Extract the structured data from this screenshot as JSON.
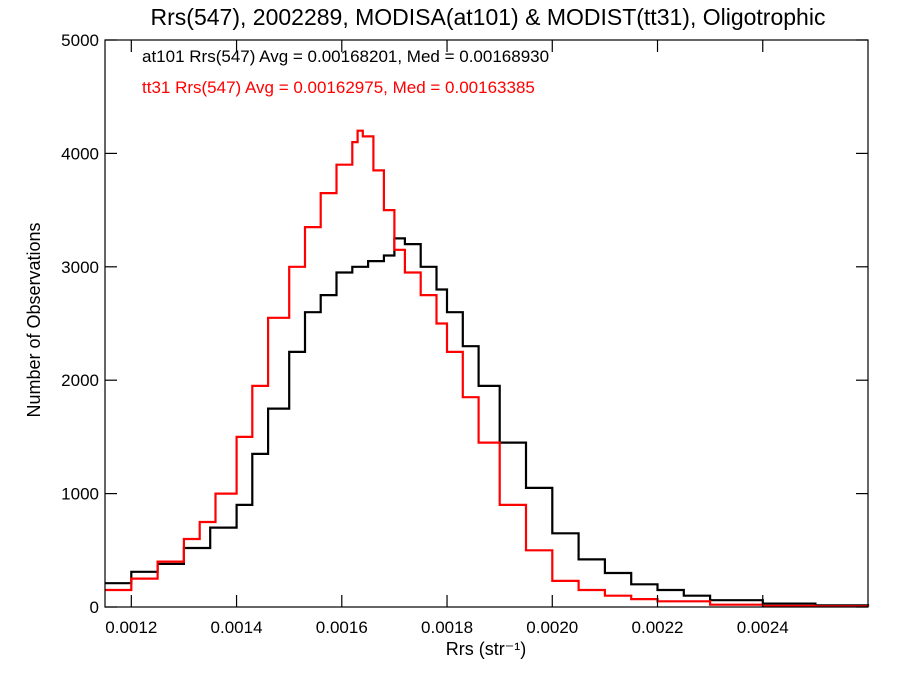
{
  "chart_data": {
    "type": "line",
    "title": "Rrs(547), 2002289, MODISA(at101) & MODIST(tt31), Oligotrophic",
    "xlabel": "Rrs (str⁻¹)",
    "ylabel": "Number of Observations",
    "xlim": [
      0.00115,
      0.0026
    ],
    "ylim": [
      0,
      5000
    ],
    "x_ticks": [
      0.0012,
      0.0014,
      0.0016,
      0.0018,
      0.002,
      0.0022,
      0.0024
    ],
    "x_tick_labels": [
      "0.0012",
      "0.0014",
      "0.0016",
      "0.0018",
      "0.0020",
      "0.0022",
      "0.0024"
    ],
    "y_ticks": [
      0,
      1000,
      2000,
      3000,
      4000,
      5000
    ],
    "y_tick_labels": [
      "0",
      "1000",
      "2000",
      "3000",
      "4000",
      "5000"
    ],
    "grid": false,
    "legend_position": "top-left",
    "annotations": [
      {
        "text": "at101 Rrs(547) Avg = 0.00168201, Med = 0.00168930",
        "color": "#000000"
      },
      {
        "text": "tt31 Rrs(547) Avg = 0.00162975, Med = 0.00163385",
        "color": "#ff0000"
      }
    ],
    "series": [
      {
        "color": "#000000",
        "x": [
          0.00115,
          0.0012,
          0.00125,
          0.0013,
          0.00135,
          0.0014,
          0.00143,
          0.00146,
          0.0015,
          0.00153,
          0.00156,
          0.00159,
          0.00162,
          0.00165,
          0.00168,
          0.0017,
          0.00172,
          0.00175,
          0.00178,
          0.0018,
          0.00183,
          0.00186,
          0.0019,
          0.00195,
          0.002,
          0.00205,
          0.0021,
          0.00215,
          0.0022,
          0.00225,
          0.0023,
          0.0024,
          0.0025,
          0.0026
        ],
        "values": [
          210,
          310,
          380,
          520,
          700,
          900,
          1350,
          1750,
          2250,
          2600,
          2750,
          2950,
          3000,
          3050,
          3100,
          3250,
          3200,
          3000,
          2800,
          2600,
          2300,
          1950,
          1450,
          1050,
          650,
          420,
          300,
          200,
          150,
          100,
          60,
          30,
          15,
          5
        ]
      },
      {
        "color": "#ff0000",
        "x": [
          0.00115,
          0.0012,
          0.00125,
          0.0013,
          0.00133,
          0.00136,
          0.0014,
          0.00143,
          0.00146,
          0.0015,
          0.00153,
          0.00156,
          0.00159,
          0.00162,
          0.00163,
          0.00164,
          0.00166,
          0.00168,
          0.0017,
          0.00172,
          0.00175,
          0.00178,
          0.0018,
          0.00183,
          0.00186,
          0.0019,
          0.00195,
          0.002,
          0.00205,
          0.0021,
          0.00215,
          0.0022,
          0.0023,
          0.0024,
          0.0025,
          0.0026
        ],
        "values": [
          150,
          250,
          400,
          600,
          750,
          1000,
          1500,
          1950,
          2550,
          3000,
          3350,
          3650,
          3900,
          4100,
          4200,
          4150,
          3850,
          3500,
          3150,
          2950,
          2750,
          2500,
          2250,
          1850,
          1450,
          900,
          500,
          230,
          150,
          100,
          70,
          50,
          20,
          10,
          5,
          2
        ]
      }
    ]
  }
}
